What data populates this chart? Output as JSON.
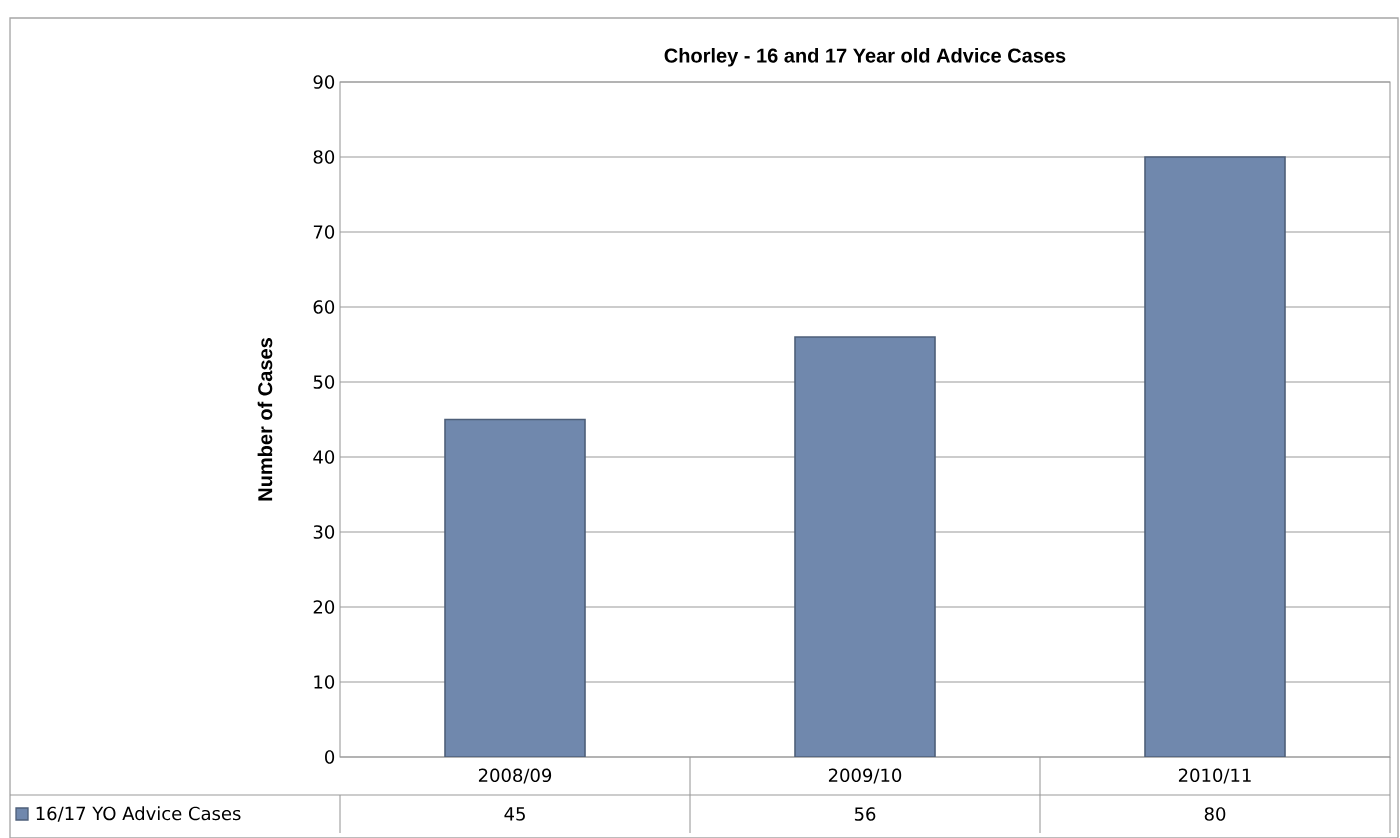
{
  "chart_data": {
    "type": "bar",
    "title": "Chorley -   16 and 17 Year old Advice Cases",
    "ylabel": "Number of Cases",
    "categories": [
      "2008/09",
      "2009/10",
      "2010/11"
    ],
    "series": [
      {
        "name": "16/17 YO Advice Cases",
        "color": "#7088ad",
        "values": [
          45,
          56,
          80
        ]
      }
    ],
    "ylim": [
      0,
      90
    ],
    "yticks": [
      0,
      10,
      20,
      30,
      40,
      50,
      60,
      70,
      80,
      90
    ],
    "grid": "y",
    "data_labels": true,
    "legend": "bottom"
  }
}
